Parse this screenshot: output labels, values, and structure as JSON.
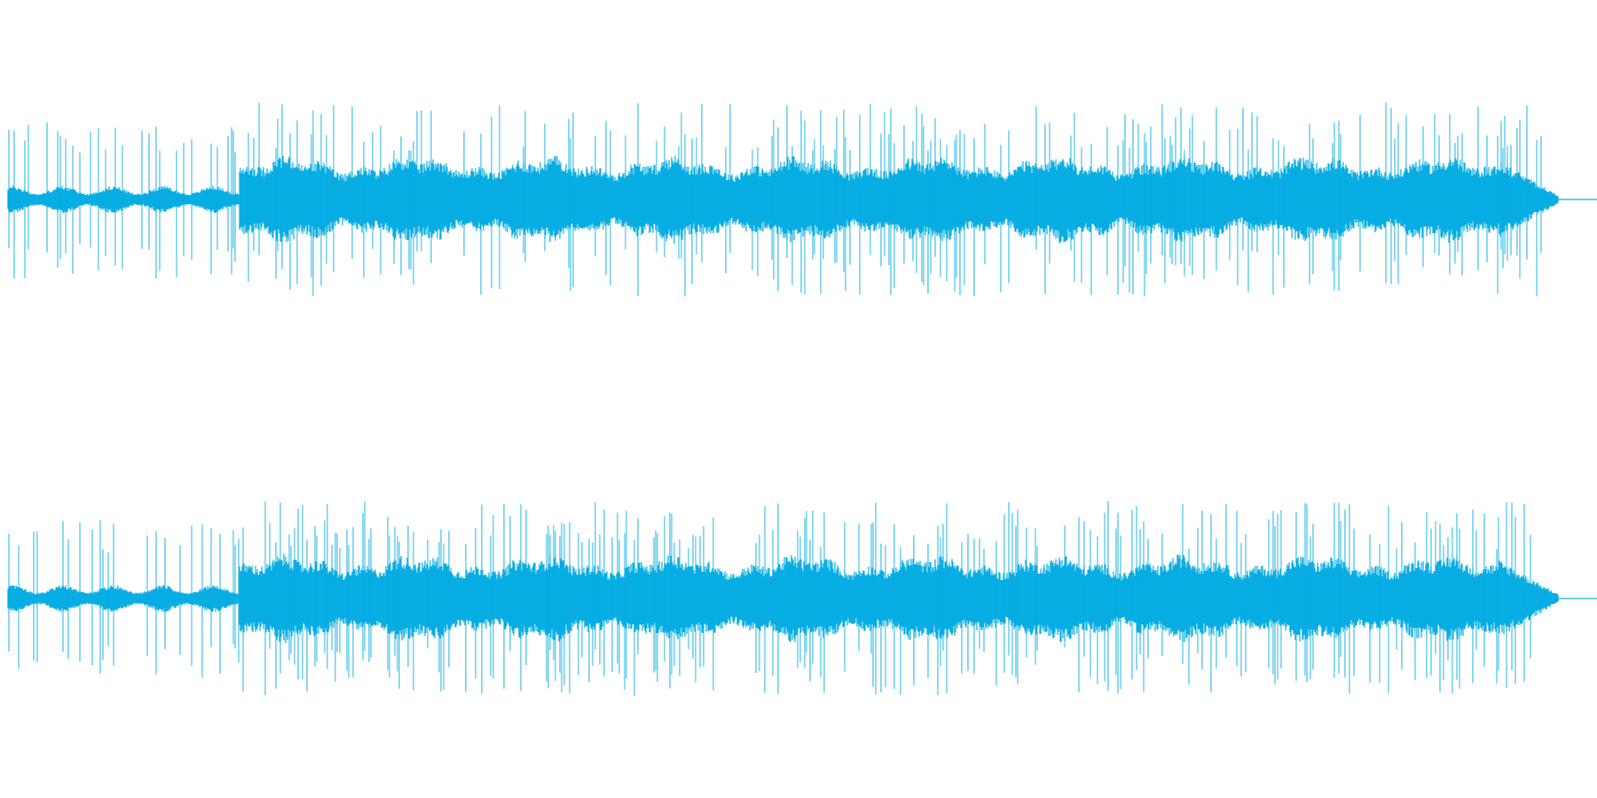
{
  "waveform": {
    "color": "#07ade3"
  }
}
